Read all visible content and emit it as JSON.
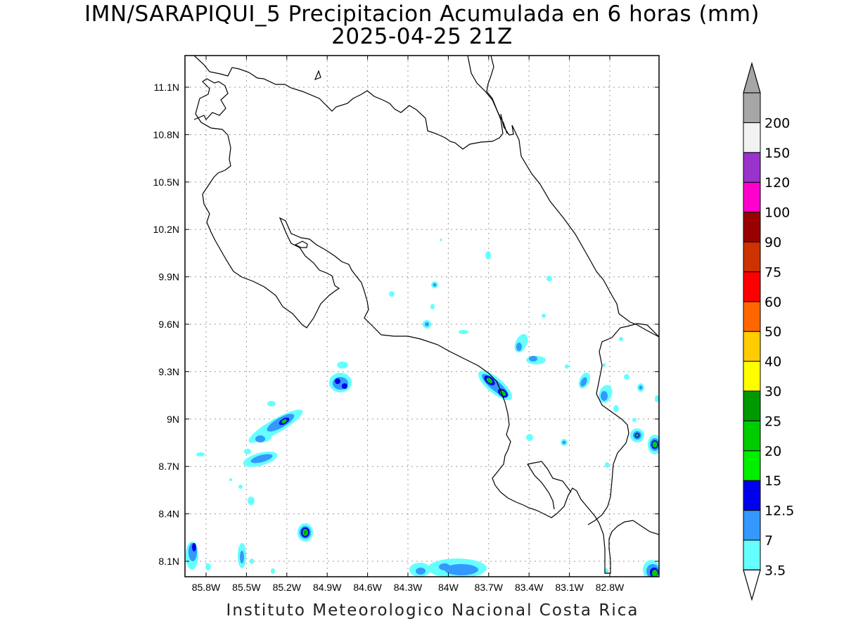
{
  "header": {
    "title": "IMN/SARAPIQUI_5 Precipitacion Acumulada en 6 horas (mm)",
    "subtitle": "2025-04-25 21Z"
  },
  "footer": {
    "credit": "Instituto Meteorologico Nacional Costa Rica"
  },
  "map": {
    "x_ticks": [
      "85.8W",
      "85.5W",
      "85.2W",
      "84.9W",
      "84.6W",
      "84.3W",
      "84W",
      "83.7W",
      "83.4W",
      "83.1W",
      "82.8W"
    ],
    "y_ticks": [
      "11.1N",
      "10.8N",
      "10.5N",
      "10.2N",
      "9.9N",
      "9.6N",
      "9.3N",
      "9N",
      "8.7N",
      "8.4N",
      "8.1N"
    ]
  },
  "colorbar": {
    "labels": [
      "3.5",
      "7",
      "12.5",
      "15",
      "20",
      "25",
      "30",
      "40",
      "50",
      "60",
      "75",
      "90",
      "100",
      "120",
      "150",
      "200"
    ],
    "colors": [
      "#66ffff",
      "#3399ff",
      "#0000ee",
      "#00ee00",
      "#00cc00",
      "#009900",
      "#ffff00",
      "#ffcc00",
      "#ff6600",
      "#ff0000",
      "#cc3300",
      "#990000",
      "#ff00cc",
      "#9933cc",
      "#f2f2f2",
      "#a6a6a6"
    ],
    "min_arrow": "#ffffff",
    "max_arrow": "#a6a6a6"
  }
}
